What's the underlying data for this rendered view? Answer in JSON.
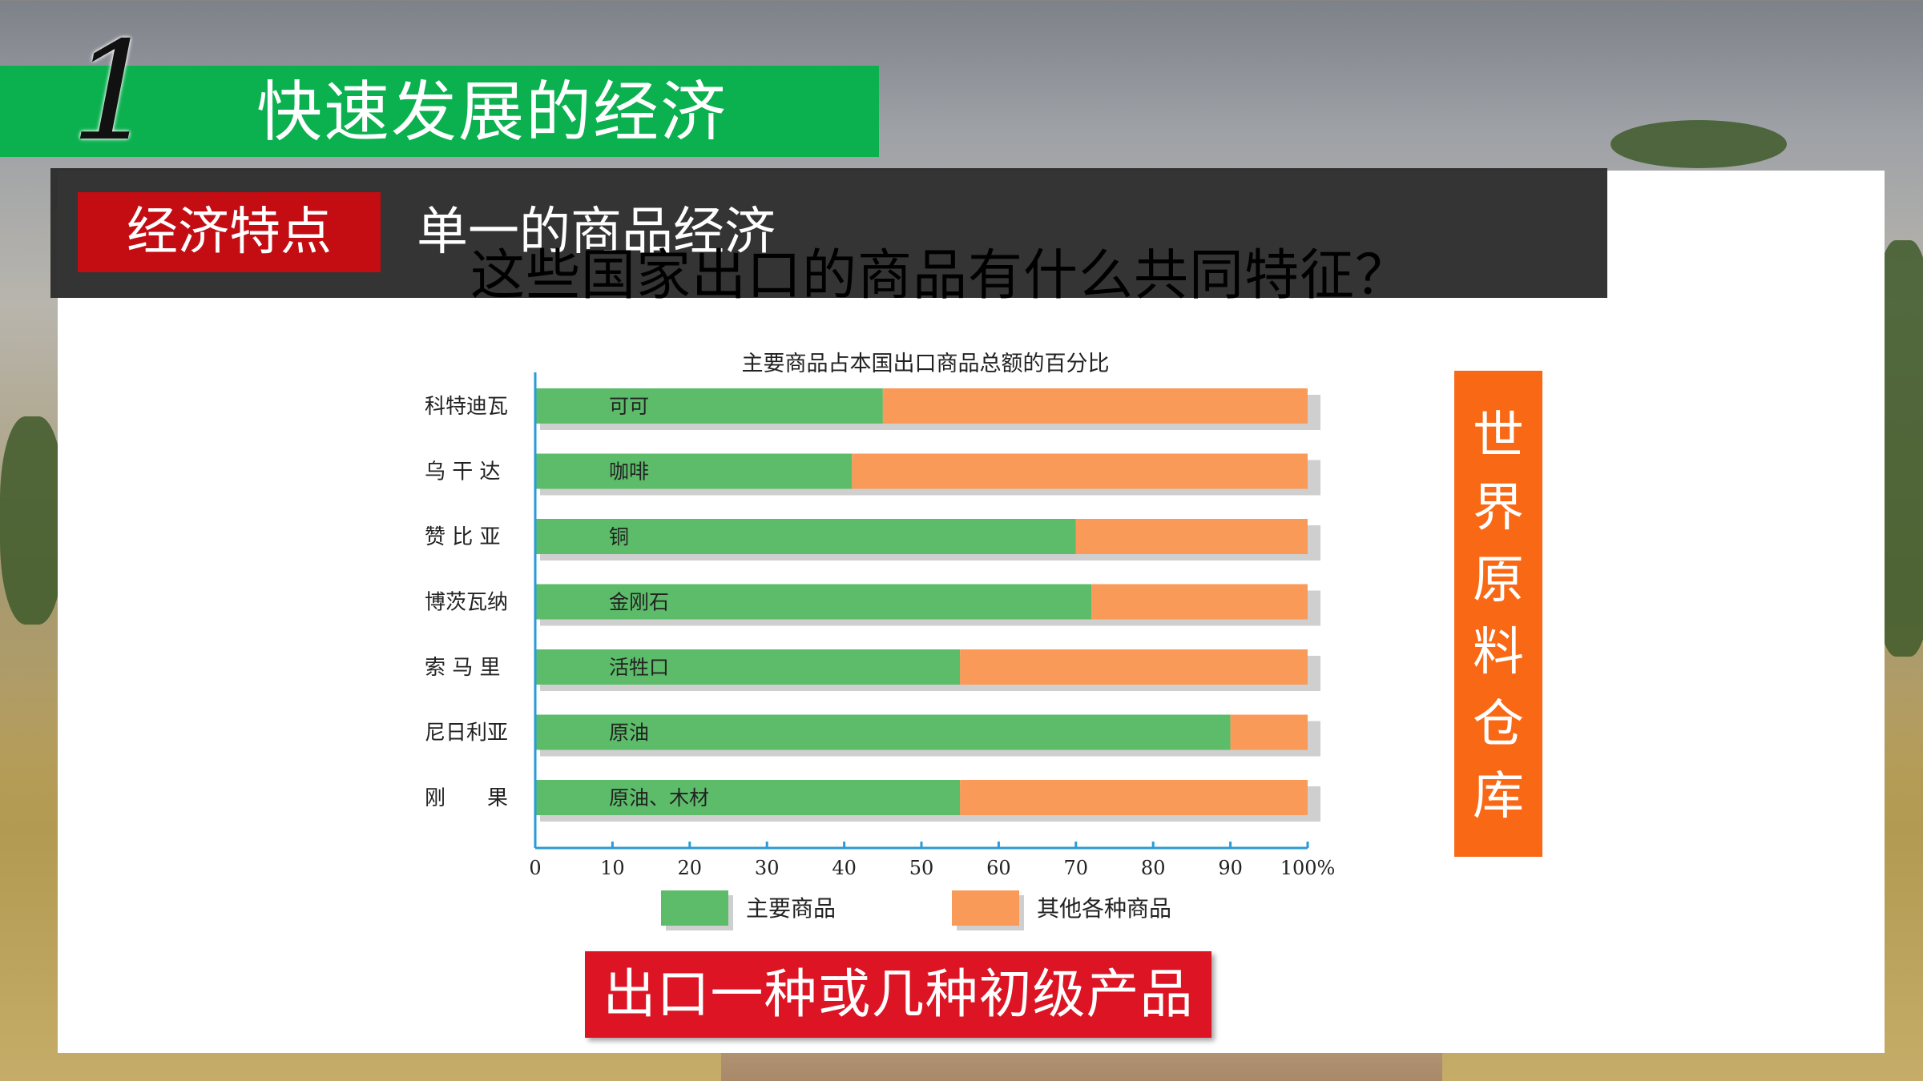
{
  "header": {
    "number": "1",
    "title": "快速发展的经济"
  },
  "feature": {
    "tag": "经济特点",
    "text": "单一的商品经济"
  },
  "question": "这些国家出口的商品有什么共同特征？",
  "side_label": [
    "世",
    "界",
    "原",
    "料",
    "仓",
    "库"
  ],
  "conclusion": "出口一种或几种初级产品",
  "colors": {
    "green_bar": "#0bb04f",
    "main_series": "#5cbc6a",
    "other_series": "#f99a58",
    "orange_box": "#f96814",
    "red_box": "#dc1424",
    "red_tag": "#c40c13"
  },
  "chart_data": {
    "type": "bar",
    "orientation": "horizontal",
    "stacked": true,
    "title": "主要商品占本国出口商品总额的百分比",
    "categories": [
      "科特迪瓦",
      "乌干达",
      "赞比亚",
      "博茨瓦纳",
      "索马里",
      "尼日利亚",
      "刚果"
    ],
    "category_labels": [
      "科特迪瓦",
      "乌 干 达",
      "赞 比 亚",
      "博茨瓦纳",
      "索 马 里",
      "尼日利亚",
      "刚　　果"
    ],
    "bar_labels": [
      "可可",
      "咖啡",
      "铜",
      "金刚石",
      "活牲口",
      "原油",
      "原油、木材"
    ],
    "series": [
      {
        "name": "主要商品",
        "values": [
          45,
          41,
          70,
          72,
          55,
          90,
          55
        ]
      },
      {
        "name": "其他各种商品",
        "values": [
          55,
          59,
          30,
          28,
          45,
          10,
          45
        ]
      }
    ],
    "x_ticks": [
      "0",
      "10",
      "20",
      "30",
      "40",
      "50",
      "60",
      "70",
      "80",
      "90",
      "100%"
    ],
    "xlim": [
      0,
      100
    ],
    "legend_position": "bottom"
  }
}
